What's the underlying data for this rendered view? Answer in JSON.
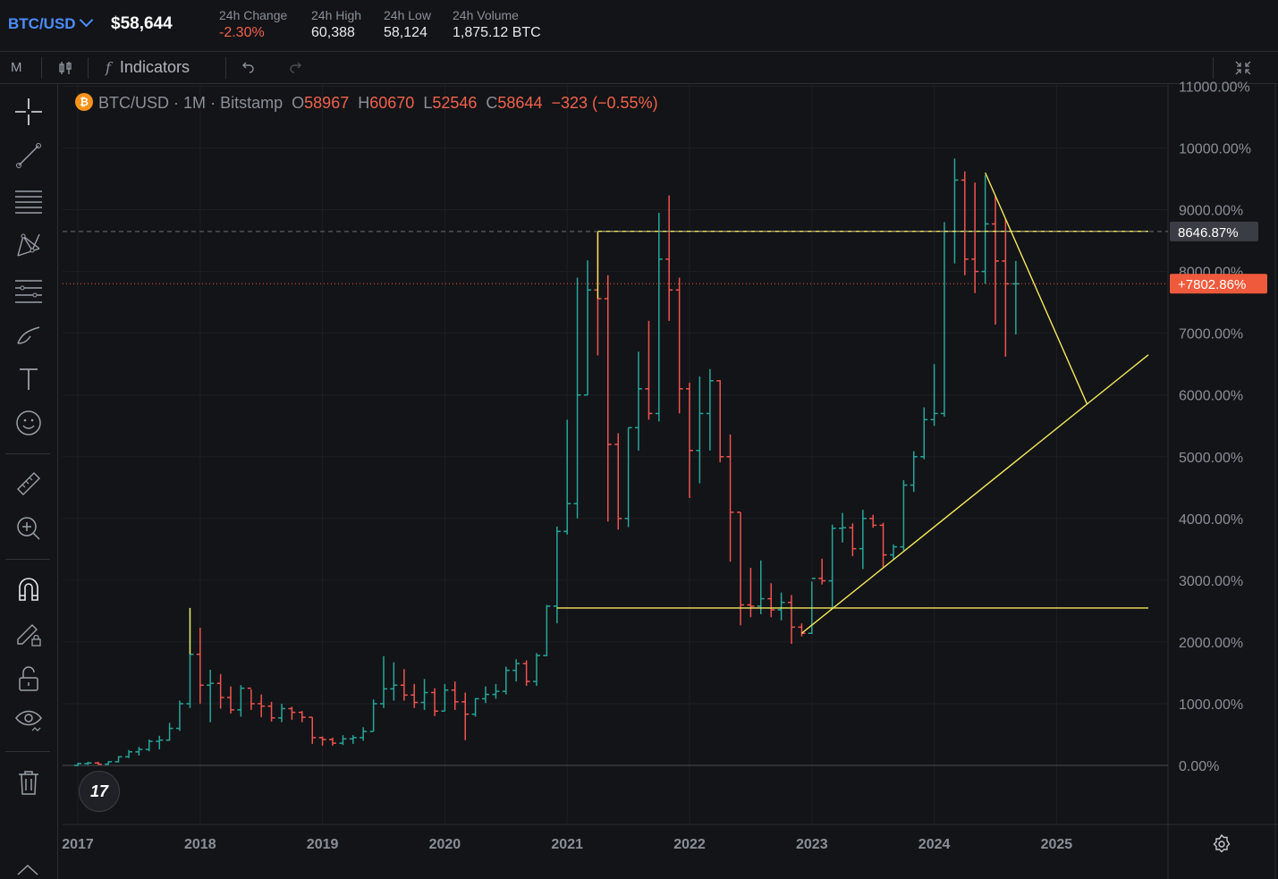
{
  "header": {
    "pair": "BTC/USD",
    "price": "$58,644",
    "stats": [
      {
        "label": "24h Change",
        "value": "-2.30%",
        "negative": true
      },
      {
        "label": "24h High",
        "value": "60,388",
        "negative": false
      },
      {
        "label": "24h Low",
        "value": "58,124",
        "negative": false
      },
      {
        "label": "24h Volume",
        "value": "1,875.12 BTC",
        "negative": false
      }
    ]
  },
  "toolbar": {
    "interval": "M",
    "indicators_label": "Indicators",
    "fx_symbol": "f",
    "undo_icon": "undo-icon",
    "redo_icon": "redo-icon",
    "fullscreen_icon": "collapse-icon"
  },
  "sidebar": {
    "icons": [
      "crosshair-icon",
      "trend-line-icon",
      "fib-lines-icon",
      "pattern-icon",
      "measure-lines-icon",
      "brush-icon",
      "text-icon",
      "emoji-icon",
      "ruler-icon",
      "zoom-in-icon",
      "magnet-icon",
      "lock-pencil-icon",
      "unlock-icon",
      "eye-icon",
      "trash-icon"
    ]
  },
  "legend": {
    "symbol": "BTC/USD",
    "interval": "1M",
    "exchange": "Bitstamp",
    "o_label": "O",
    "o_value": "58967",
    "h_label": "H",
    "h_value": "60670",
    "l_label": "L",
    "l_value": "52546",
    "c_label": "C",
    "c_value": "58644",
    "change": "−323 (−0.55%)",
    "sep": "·"
  },
  "tv_logo": "17",
  "colors": {
    "up": "#26a69a",
    "down": "#ef5350",
    "drawing": "#f2e85c",
    "marker_bg": "#3a3d44",
    "current_bg": "#f05a3c",
    "background": "#131417"
  },
  "chart_data": {
    "type": "candlestick",
    "yaxis": {
      "unit": "%",
      "ticks": [
        "0.00%",
        "1000.00%",
        "2000.00%",
        "3000.00%",
        "4000.00%",
        "5000.00%",
        "6000.00%",
        "7000.00%",
        "8000.00%",
        "9000.00%",
        "10000.00%",
        "11000.00%"
      ],
      "tick_values": [
        0,
        1000,
        2000,
        3000,
        4000,
        5000,
        6000,
        7000,
        8000,
        9000,
        10000,
        11000
      ]
    },
    "xaxis": {
      "ticks": [
        "2017",
        "2018",
        "2019",
        "2020",
        "2021",
        "2022",
        "2023",
        "2024",
        "2025"
      ],
      "tick_values": [
        2017,
        2018,
        2019,
        2020,
        2021,
        2022,
        2023,
        2024,
        2025
      ]
    },
    "markers": [
      {
        "label": "8646.87%",
        "value": 8646.87,
        "style": "dashed"
      },
      {
        "label": "+7802.86%",
        "value": 7802.86,
        "style": "dotted",
        "current": true
      }
    ],
    "candles": [
      {
        "t": 2017.0,
        "o": 0,
        "h": 40,
        "l": -10,
        "c": 30
      },
      {
        "t": 2017.083,
        "o": 30,
        "h": 60,
        "l": 10,
        "c": 40
      },
      {
        "t": 2017.167,
        "o": 40,
        "h": 60,
        "l": 10,
        "c": 20
      },
      {
        "t": 2017.25,
        "o": 20,
        "h": 70,
        "l": 10,
        "c": 60
      },
      {
        "t": 2017.333,
        "o": 60,
        "h": 150,
        "l": 50,
        "c": 140
      },
      {
        "t": 2017.417,
        "o": 140,
        "h": 250,
        "l": 120,
        "c": 220
      },
      {
        "t": 2017.5,
        "o": 220,
        "h": 300,
        "l": 160,
        "c": 260
      },
      {
        "t": 2017.583,
        "o": 260,
        "h": 420,
        "l": 230,
        "c": 390
      },
      {
        "t": 2017.667,
        "o": 390,
        "h": 480,
        "l": 260,
        "c": 410
      },
      {
        "t": 2017.75,
        "o": 410,
        "h": 690,
        "l": 400,
        "c": 600
      },
      {
        "t": 2017.833,
        "o": 600,
        "h": 1050,
        "l": 560,
        "c": 1000
      },
      {
        "t": 2017.917,
        "o": 1000,
        "h": 2550,
        "l": 930,
        "c": 1800
      },
      {
        "t": 2018.0,
        "o": 1800,
        "h": 2230,
        "l": 1000,
        "c": 1300
      },
      {
        "t": 2018.083,
        "o": 1300,
        "h": 1550,
        "l": 700,
        "c": 1330
      },
      {
        "t": 2018.167,
        "o": 1330,
        "h": 1480,
        "l": 920,
        "c": 1100
      },
      {
        "t": 2018.25,
        "o": 1100,
        "h": 1280,
        "l": 840,
        "c": 900
      },
      {
        "t": 2018.333,
        "o": 900,
        "h": 1300,
        "l": 790,
        "c": 1250
      },
      {
        "t": 2018.417,
        "o": 1250,
        "h": 1230,
        "l": 900,
        "c": 1000
      },
      {
        "t": 2018.5,
        "o": 1000,
        "h": 1150,
        "l": 780,
        "c": 960
      },
      {
        "t": 2018.583,
        "o": 960,
        "h": 1030,
        "l": 710,
        "c": 770
      },
      {
        "t": 2018.667,
        "o": 770,
        "h": 1000,
        "l": 700,
        "c": 920
      },
      {
        "t": 2018.75,
        "o": 920,
        "h": 950,
        "l": 740,
        "c": 860
      },
      {
        "t": 2018.833,
        "o": 860,
        "h": 880,
        "l": 700,
        "c": 780
      },
      {
        "t": 2018.917,
        "o": 780,
        "h": 780,
        "l": 350,
        "c": 450
      },
      {
        "t": 2019.0,
        "o": 450,
        "h": 470,
        "l": 320,
        "c": 420
      },
      {
        "t": 2019.083,
        "o": 420,
        "h": 450,
        "l": 320,
        "c": 360
      },
      {
        "t": 2019.167,
        "o": 360,
        "h": 490,
        "l": 330,
        "c": 430
      },
      {
        "t": 2019.25,
        "o": 430,
        "h": 490,
        "l": 350,
        "c": 450
      },
      {
        "t": 2019.333,
        "o": 450,
        "h": 620,
        "l": 400,
        "c": 550
      },
      {
        "t": 2019.417,
        "o": 550,
        "h": 1070,
        "l": 550,
        "c": 1000
      },
      {
        "t": 2019.5,
        "o": 1000,
        "h": 1770,
        "l": 930,
        "c": 1240
      },
      {
        "t": 2019.583,
        "o": 1240,
        "h": 1670,
        "l": 1050,
        "c": 1300
      },
      {
        "t": 2019.667,
        "o": 1300,
        "h": 1560,
        "l": 1050,
        "c": 1140
      },
      {
        "t": 2019.75,
        "o": 1140,
        "h": 1320,
        "l": 930,
        "c": 1020
      },
      {
        "t": 2019.833,
        "o": 1020,
        "h": 1400,
        "l": 900,
        "c": 1180
      },
      {
        "t": 2019.917,
        "o": 1180,
        "h": 1250,
        "l": 800,
        "c": 880
      },
      {
        "t": 2020.0,
        "o": 880,
        "h": 1320,
        "l": 880,
        "c": 1220
      },
      {
        "t": 2020.083,
        "o": 1220,
        "h": 1360,
        "l": 900,
        "c": 1030
      },
      {
        "t": 2020.167,
        "o": 1030,
        "h": 1180,
        "l": 410,
        "c": 830
      },
      {
        "t": 2020.25,
        "o": 830,
        "h": 1090,
        "l": 790,
        "c": 1080
      },
      {
        "t": 2020.333,
        "o": 1080,
        "h": 1280,
        "l": 1010,
        "c": 1150
      },
      {
        "t": 2020.417,
        "o": 1150,
        "h": 1320,
        "l": 1080,
        "c": 1200
      },
      {
        "t": 2020.5,
        "o": 1200,
        "h": 1600,
        "l": 1150,
        "c": 1540
      },
      {
        "t": 2020.583,
        "o": 1540,
        "h": 1720,
        "l": 1360,
        "c": 1650
      },
      {
        "t": 2020.667,
        "o": 1650,
        "h": 1700,
        "l": 1290,
        "c": 1360
      },
      {
        "t": 2020.75,
        "o": 1360,
        "h": 1820,
        "l": 1290,
        "c": 1780
      },
      {
        "t": 2020.833,
        "o": 1780,
        "h": 2600,
        "l": 1770,
        "c": 2580
      },
      {
        "t": 2020.917,
        "o": 2580,
        "h": 3870,
        "l": 2300,
        "c": 3790
      },
      {
        "t": 2021.0,
        "o": 3790,
        "h": 5600,
        "l": 3740,
        "c": 4240
      },
      {
        "t": 2021.083,
        "o": 4240,
        "h": 7900,
        "l": 4000,
        "c": 6000
      },
      {
        "t": 2021.167,
        "o": 6000,
        "h": 8180,
        "l": 6000,
        "c": 7700
      },
      {
        "t": 2021.25,
        "o": 7700,
        "h": 8650,
        "l": 6640,
        "c": 7560
      },
      {
        "t": 2021.333,
        "o": 7560,
        "h": 7940,
        "l": 3950,
        "c": 5200
      },
      {
        "t": 2021.417,
        "o": 5200,
        "h": 5380,
        "l": 3820,
        "c": 4000
      },
      {
        "t": 2021.5,
        "o": 4000,
        "h": 5470,
        "l": 3860,
        "c": 5470
      },
      {
        "t": 2021.583,
        "o": 5470,
        "h": 6700,
        "l": 5100,
        "c": 6100
      },
      {
        "t": 2021.667,
        "o": 6100,
        "h": 7200,
        "l": 5600,
        "c": 5700
      },
      {
        "t": 2021.75,
        "o": 5700,
        "h": 8950,
        "l": 5570,
        "c": 8200
      },
      {
        "t": 2021.833,
        "o": 8200,
        "h": 9230,
        "l": 7200,
        "c": 7700
      },
      {
        "t": 2021.917,
        "o": 7700,
        "h": 7900,
        "l": 5700,
        "c": 6100
      },
      {
        "t": 2022.0,
        "o": 6100,
        "h": 6200,
        "l": 4330,
        "c": 5100
      },
      {
        "t": 2022.083,
        "o": 5100,
        "h": 6300,
        "l": 4570,
        "c": 5700
      },
      {
        "t": 2022.167,
        "o": 5700,
        "h": 6420,
        "l": 5100,
        "c": 6230
      },
      {
        "t": 2022.25,
        "o": 6230,
        "h": 6240,
        "l": 4910,
        "c": 5000
      },
      {
        "t": 2022.333,
        "o": 5000,
        "h": 5360,
        "l": 3300,
        "c": 4100
      },
      {
        "t": 2022.417,
        "o": 4100,
        "h": 4100,
        "l": 2270,
        "c": 2600
      },
      {
        "t": 2022.5,
        "o": 2600,
        "h": 3200,
        "l": 2400,
        "c": 2580
      },
      {
        "t": 2022.583,
        "o": 2580,
        "h": 3320,
        "l": 2450,
        "c": 2700
      },
      {
        "t": 2022.667,
        "o": 2700,
        "h": 2950,
        "l": 2400,
        "c": 2520
      },
      {
        "t": 2022.75,
        "o": 2520,
        "h": 2800,
        "l": 2350,
        "c": 2640
      },
      {
        "t": 2022.833,
        "o": 2640,
        "h": 2760,
        "l": 1970,
        "c": 2240
      },
      {
        "t": 2022.917,
        "o": 2240,
        "h": 2300,
        "l": 2090,
        "c": 2140
      },
      {
        "t": 2023.0,
        "o": 2140,
        "h": 2980,
        "l": 2130,
        "c": 3030
      },
      {
        "t": 2023.083,
        "o": 3030,
        "h": 3350,
        "l": 2930,
        "c": 2990
      },
      {
        "t": 2023.167,
        "o": 2990,
        "h": 3900,
        "l": 2550,
        "c": 3840
      },
      {
        "t": 2023.25,
        "o": 3840,
        "h": 4090,
        "l": 3610,
        "c": 3850
      },
      {
        "t": 2023.333,
        "o": 3850,
        "h": 3920,
        "l": 3390,
        "c": 3510
      },
      {
        "t": 2023.417,
        "o": 3510,
        "h": 4140,
        "l": 3180,
        "c": 4000
      },
      {
        "t": 2023.5,
        "o": 4000,
        "h": 4060,
        "l": 3850,
        "c": 3890
      },
      {
        "t": 2023.583,
        "o": 3890,
        "h": 3930,
        "l": 3200,
        "c": 3410
      },
      {
        "t": 2023.667,
        "o": 3410,
        "h": 3580,
        "l": 3340,
        "c": 3540
      },
      {
        "t": 2023.75,
        "o": 3540,
        "h": 4620,
        "l": 3480,
        "c": 4540
      },
      {
        "t": 2023.833,
        "o": 4540,
        "h": 5090,
        "l": 4430,
        "c": 5000
      },
      {
        "t": 2023.917,
        "o": 5000,
        "h": 5800,
        "l": 4960,
        "c": 5600
      },
      {
        "t": 2024.0,
        "o": 5600,
        "h": 6500,
        "l": 5500,
        "c": 5700
      },
      {
        "t": 2024.083,
        "o": 5700,
        "h": 8800,
        "l": 5650,
        "c": 8650
      },
      {
        "t": 2024.167,
        "o": 8650,
        "h": 9830,
        "l": 8130,
        "c": 9480
      },
      {
        "t": 2024.25,
        "o": 9480,
        "h": 9620,
        "l": 7940,
        "c": 8200
      },
      {
        "t": 2024.333,
        "o": 8200,
        "h": 9440,
        "l": 7650,
        "c": 8000
      },
      {
        "t": 2024.417,
        "o": 8000,
        "h": 9560,
        "l": 7800,
        "c": 8770
      },
      {
        "t": 2024.5,
        "o": 8770,
        "h": 9230,
        "l": 7140,
        "c": 8170
      },
      {
        "t": 2024.583,
        "o": 8170,
        "h": 8850,
        "l": 6620,
        "c": 7800
      },
      {
        "t": 2024.667,
        "o": 7800,
        "h": 8170,
        "l": 6980,
        "c": 7800
      }
    ],
    "drawings": [
      {
        "type": "hline",
        "t1": 2020.917,
        "t2": 2025.75,
        "v": 2550
      },
      {
        "type": "segment",
        "t1": 2017.917,
        "v1": 2550,
        "t2": 2017.917,
        "v2": 1800
      },
      {
        "type": "hline",
        "t1": 2021.25,
        "t2": 2025.75,
        "v": 8650
      },
      {
        "type": "segment",
        "t1": 2021.25,
        "v1": 8650,
        "t2": 2021.25,
        "v2": 7560
      },
      {
        "type": "segment",
        "t1": 2022.917,
        "v1": 2140,
        "t2": 2025.75,
        "v2": 6650
      },
      {
        "type": "segment",
        "t1": 2024.417,
        "v1": 9600,
        "t2": 2025.25,
        "v2": 5850
      }
    ]
  }
}
